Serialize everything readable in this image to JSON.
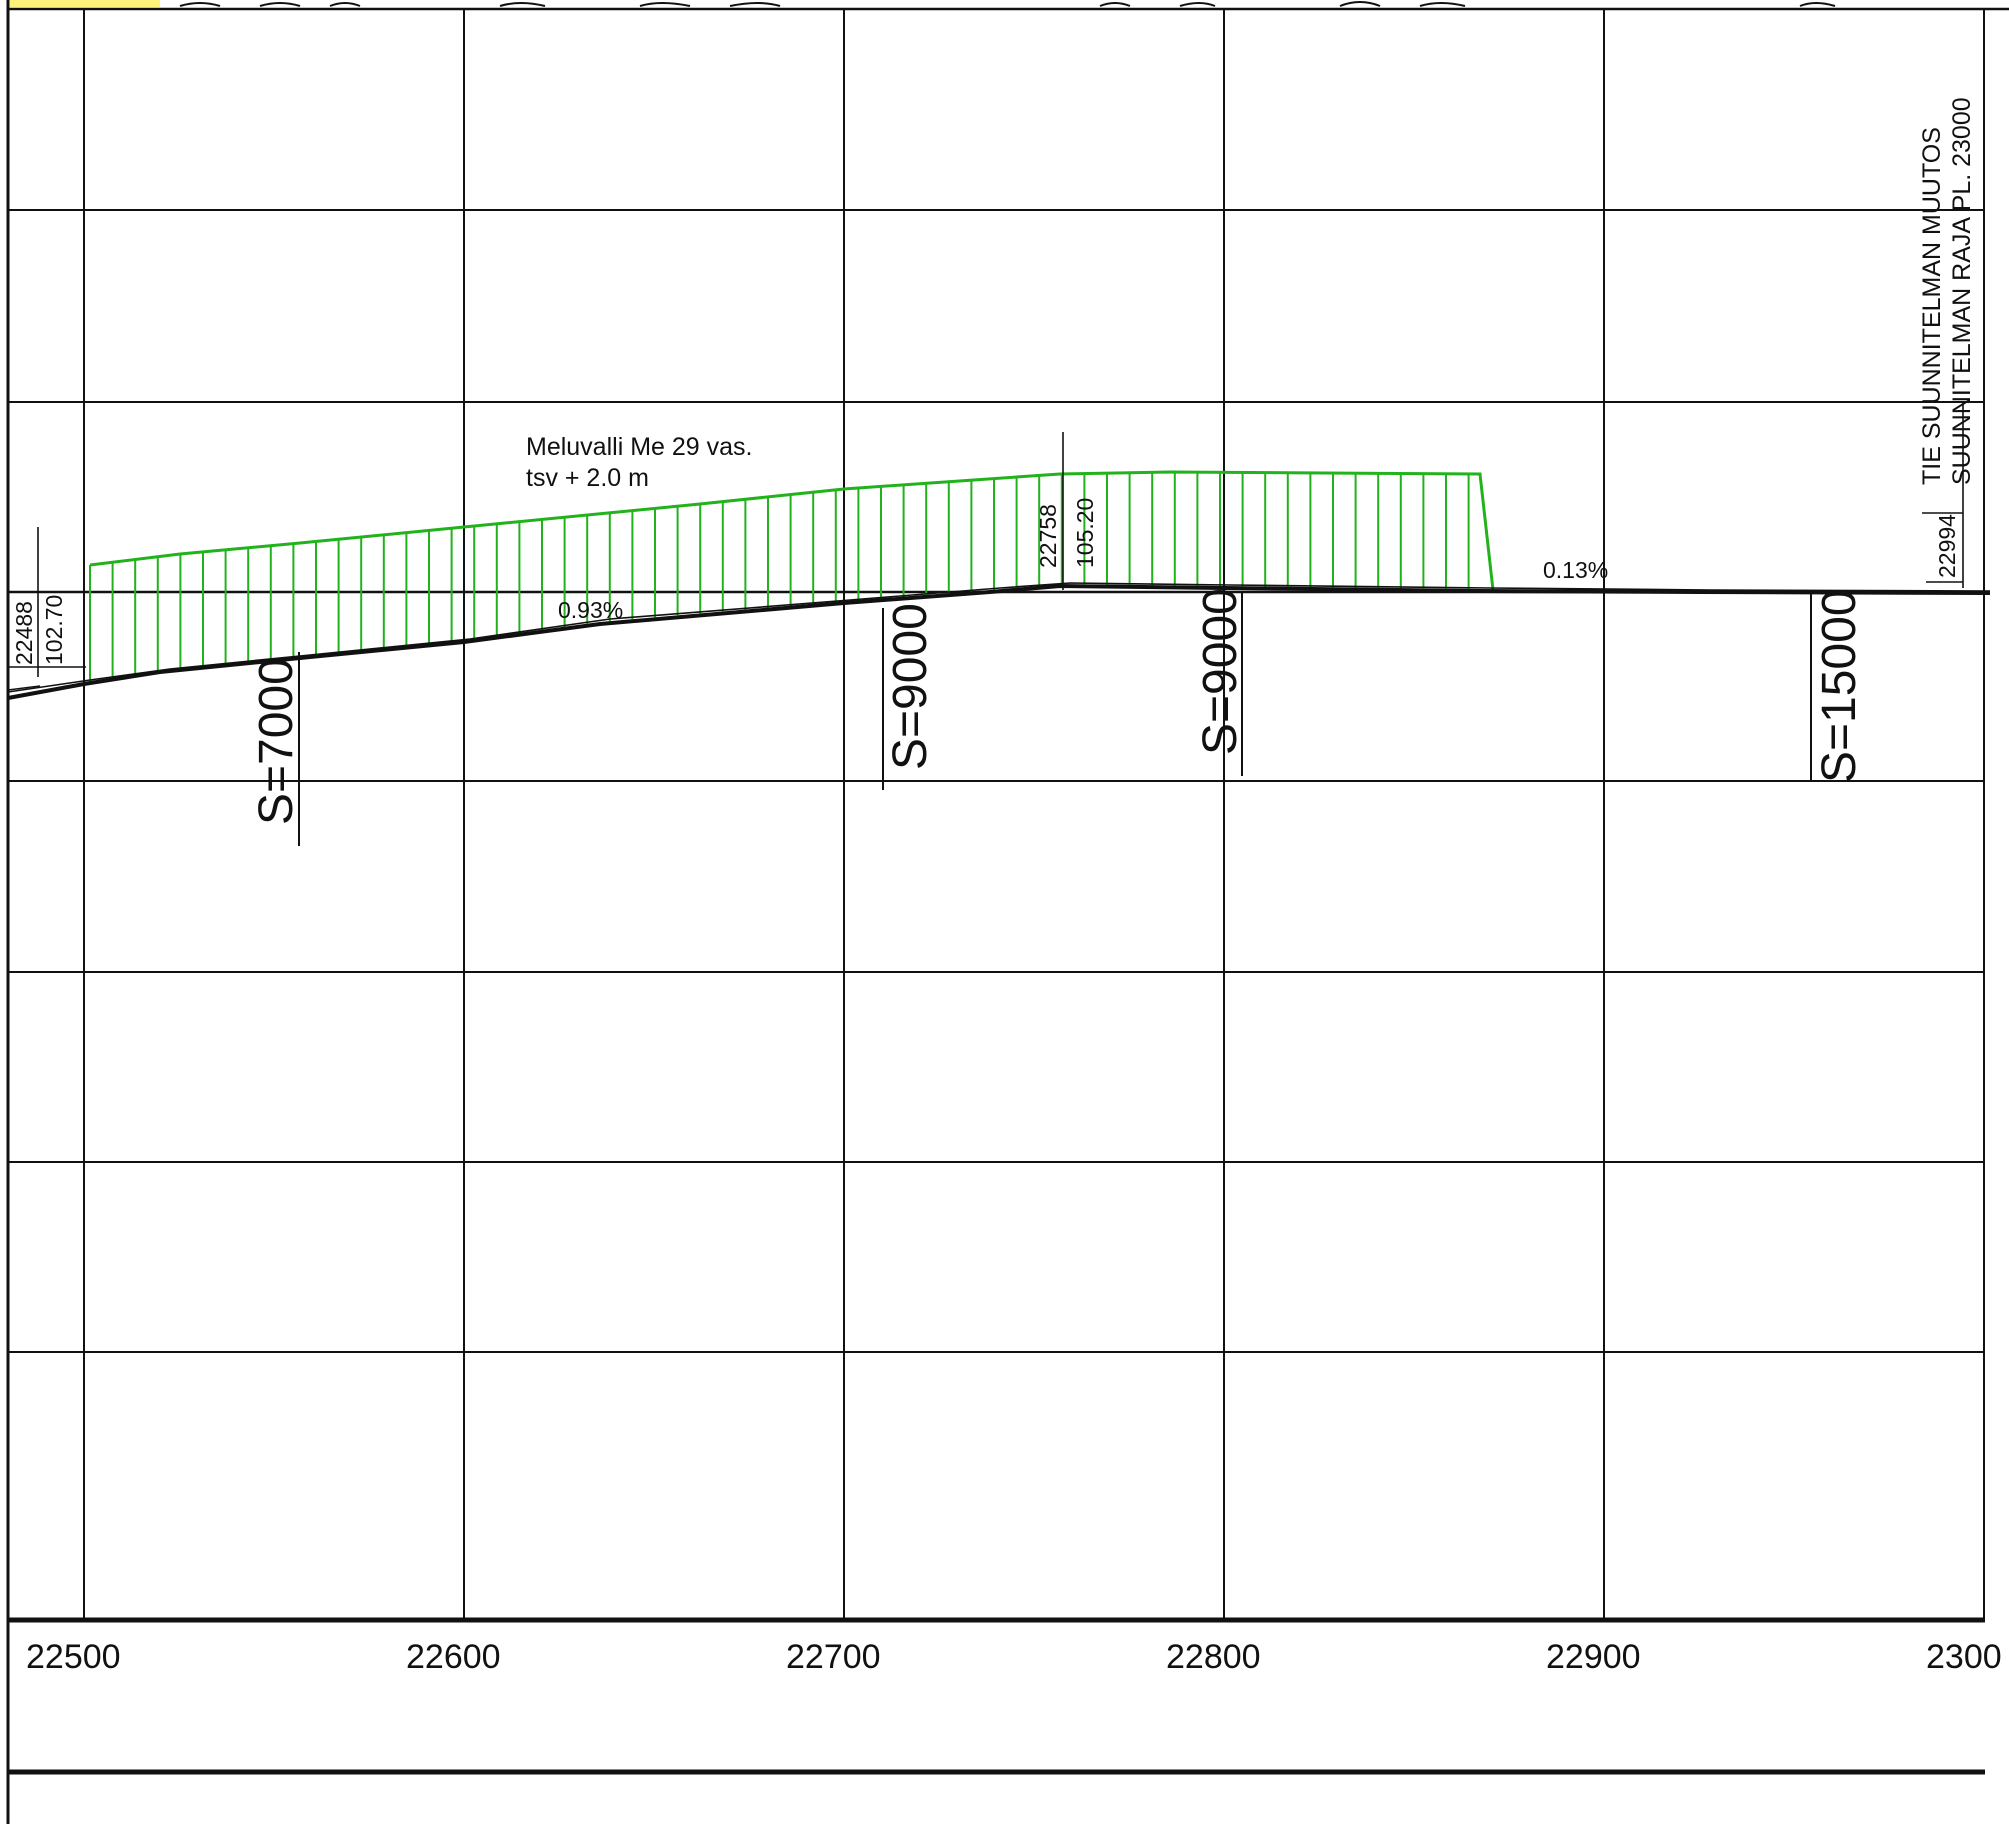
{
  "colors": {
    "paper": "#ffffff",
    "ink": "#111111",
    "berm": "#22b21b",
    "highlight": "#fff27a"
  },
  "x_axis": {
    "labels": [
      "22500",
      "22600",
      "22700",
      "22800",
      "22900",
      "2300"
    ]
  },
  "berm": {
    "title": "Meluvalli Me 29 vas.",
    "subtitle": "tsv + 2.0 m"
  },
  "grades": {
    "first": "0.93%",
    "second": "0.13%"
  },
  "vertical_curves": [
    {
      "label": "S=7000"
    },
    {
      "label": "S=9000"
    },
    {
      "label": "S=9000"
    },
    {
      "label": "S=15000"
    }
  ],
  "points": {
    "start_station": "22488",
    "start_elevation": "102.70",
    "crest_station": "22758",
    "crest_elevation": "105.20",
    "end_station": "22994"
  },
  "boundary_note": {
    "line1": "TIE SUUNNITELMAN MUUTOS",
    "line2": "SUUNNITELMAN RAJA PL. 23000"
  }
}
